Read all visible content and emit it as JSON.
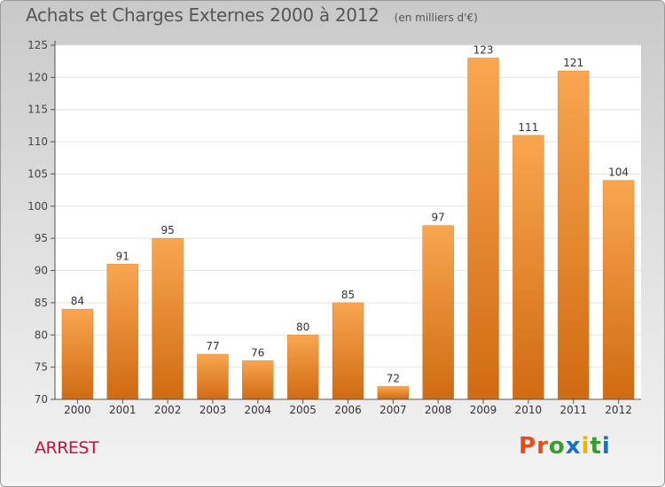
{
  "header": {
    "title": "Achats et Charges Externes 2000 à 2012",
    "subtitle": "(en milliers d'€)"
  },
  "footer": {
    "commune": "ARREST",
    "logo_text": "Proxiti"
  },
  "colors": {
    "bar_light": "#f9a650",
    "bar_dark": "#d06b12",
    "grid": "#e4e4e4",
    "commune_text": "#c8103f",
    "logo_letters": [
      "#e84c1b",
      "#e84c1b",
      "#3a9b2e",
      "#1a73c2",
      "#f0b400",
      "#3a9b2e",
      "#1a73c2"
    ]
  },
  "chart_data": {
    "type": "bar",
    "categories": [
      "2000",
      "2001",
      "2002",
      "2003",
      "2004",
      "2005",
      "2006",
      "2007",
      "2008",
      "2009",
      "2010",
      "2011",
      "2012"
    ],
    "values": [
      84,
      91,
      95,
      77,
      76,
      80,
      85,
      72,
      97,
      123,
      111,
      121,
      104
    ],
    "data_labels": [
      "84",
      "91",
      "95",
      "77",
      "76",
      "80",
      "85",
      "72",
      "97",
      "123",
      "111",
      "121",
      "104"
    ],
    "title": "Achats et Charges Externes 2000 à 2012",
    "xlabel": "",
    "ylabel": "",
    "ylim": [
      70,
      125
    ],
    "yticks": [
      70,
      75,
      80,
      85,
      90,
      95,
      100,
      105,
      110,
      115,
      120,
      125
    ],
    "grid": true
  }
}
